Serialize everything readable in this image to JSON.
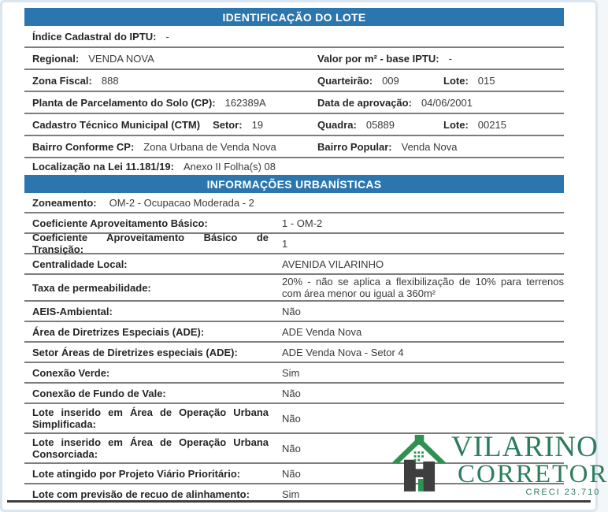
{
  "colors": {
    "header_bg": "#2b76ae",
    "divider": "#7d7d7d",
    "logo_green": "#2b7d5c",
    "roof_green": "#2f9150",
    "house_gray": "#3e3e3e"
  },
  "section1": {
    "title": "IDENTIFICAÇÃO DO LOTE",
    "rows": [
      {
        "cells": [
          {
            "label": "Índice Cadastral do IPTU:",
            "value": "-"
          }
        ]
      },
      {
        "cells": [
          {
            "label": "Regional:",
            "value": "VENDA NOVA"
          },
          {
            "label": "Valor por m² - base IPTU:",
            "value": "-",
            "col": 2
          }
        ]
      },
      {
        "cells": [
          {
            "label": "Zona Fiscal:",
            "value": "888"
          },
          {
            "label": "Quarteirão:",
            "value": "009",
            "col": 2
          },
          {
            "label": "Lote:",
            "value": "015",
            "col": 3
          }
        ]
      },
      {
        "cells": [
          {
            "label": "Planta de Parcelamento do Solo (CP):",
            "value": "162389A"
          },
          {
            "label": "Data de aprovação:",
            "value": "04/06/2001",
            "col": 2
          }
        ]
      },
      {
        "cells": [
          {
            "label": "Cadastro Técnico Municipal (CTM)"
          },
          {
            "label": "Setor:",
            "value": "19"
          },
          {
            "label": "Quadra:",
            "value": "05889",
            "col": 2
          },
          {
            "label": "Lote:",
            "value": "00215",
            "col": 3
          }
        ]
      },
      {
        "cells": [
          {
            "label": "Bairro Conforme CP:",
            "value": "Zona Urbana de Venda Nova"
          },
          {
            "label": "Bairro Popular:",
            "value": "Venda Nova",
            "col": 2
          }
        ]
      },
      {
        "cells": [
          {
            "label": "Localização na Lei 11.181/19:",
            "value": "Anexo II Folha(s) 08"
          }
        ],
        "noDivider": true
      }
    ]
  },
  "section2": {
    "title": "INFORMAÇÕES URBANÍSTICAS",
    "rows": [
      {
        "label": "Zoneamento:",
        "value": "OM-2 - Ocupacao Moderada - 2",
        "inline": true
      },
      {
        "label": "Coeficiente Aproveitamento Básico:",
        "value": "1 - OM-2"
      },
      {
        "label": "Coeficiente Aproveitamento Básico de Transição:",
        "value": "1"
      },
      {
        "label": "Centralidade Local:",
        "value": "AVENIDA VILARINHO"
      },
      {
        "label": "Taxa de permeabilidade:",
        "value": "20% - não se aplica a flexibilização de 10% para terrenos com área menor ou igual a 360m²",
        "taxa": true
      },
      {
        "label": "AEIS-Ambiental:",
        "value": "Não"
      },
      {
        "label": "Área de Diretrizes Especiais (ADE):",
        "value": "ADE Venda Nova"
      },
      {
        "label": "Setor Áreas de Diretrizes especiais (ADE):",
        "value": "ADE Venda Nova - Setor 4"
      },
      {
        "label": "Conexão Verde:",
        "value": "Sim"
      },
      {
        "label": "Conexão de Fundo de Vale:",
        "value": "Não"
      },
      {
        "label": "Lote inserido em Área de Operação Urbana Simplificada:",
        "value": "Não",
        "tall": true
      },
      {
        "label": "Lote inserido em Área de Operação Urbana Consorciada:",
        "value": "Não",
        "tall": true
      },
      {
        "label": "Lote atingido por Projeto Viário Prioritário:",
        "value": "Não"
      },
      {
        "label": "Lote com previsão de recuo de alinhamento:",
        "value": "Sim",
        "last": true
      }
    ]
  },
  "logo": {
    "name": "VILARINO",
    "subtitle": "CORRETOR",
    "creci": "CRECI 23.710"
  }
}
